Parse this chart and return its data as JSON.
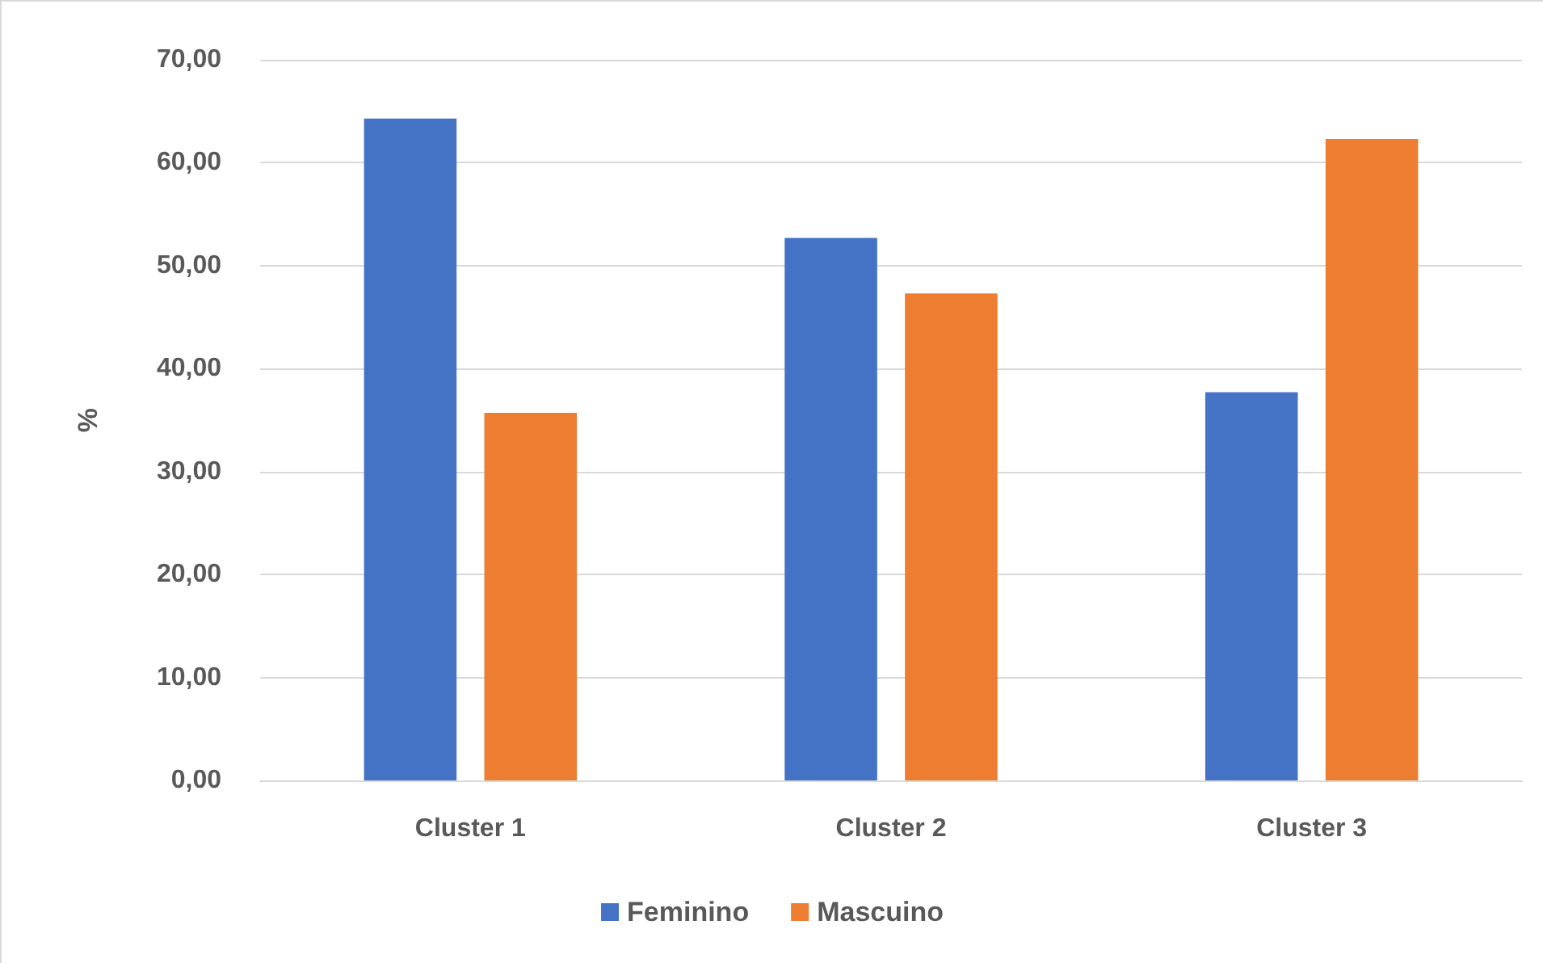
{
  "chart_data": {
    "type": "bar",
    "ylabel": "%",
    "categories": [
      "Cluster 1",
      "Cluster 2",
      "Cluster 3"
    ],
    "series": [
      {
        "name": "Feminino",
        "color": "#4472c4",
        "values": [
          64.3,
          52.7,
          37.7
        ]
      },
      {
        "name": "Mascuino",
        "color": "#ed7d31",
        "values": [
          35.7,
          47.3,
          62.3
        ]
      }
    ],
    "ylim": [
      0,
      70
    ],
    "yticks": [
      {
        "value": 0,
        "label": "0,00"
      },
      {
        "value": 10,
        "label": "10,00"
      },
      {
        "value": 20,
        "label": "20,00"
      },
      {
        "value": 30,
        "label": "30,00"
      },
      {
        "value": 40,
        "label": "40,00"
      },
      {
        "value": 50,
        "label": "50,00"
      },
      {
        "value": 60,
        "label": "60,00"
      },
      {
        "value": 70,
        "label": "70,00"
      }
    ],
    "grid": "y",
    "legend": "bottom"
  }
}
